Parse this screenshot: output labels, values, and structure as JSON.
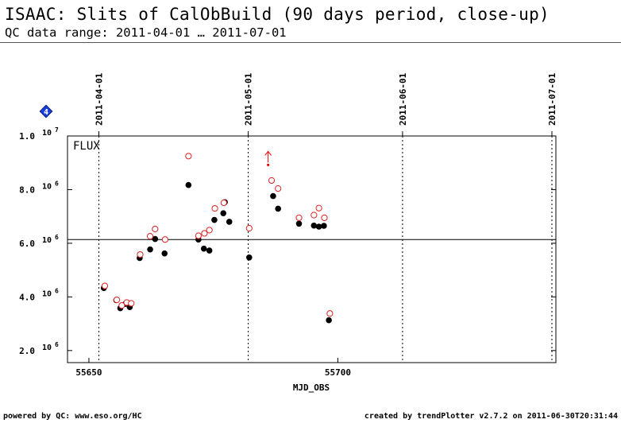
{
  "header": {
    "title": "ISAAC: Slits of CalObBuild (90 days period, close-up)",
    "subtitle": "QC data range: 2011-04-01 … 2011-07-01"
  },
  "footer": {
    "left": "powered by QC: www.eso.org/HC",
    "right": "created by trendPlotter v2.7.2 on 2011-06-30T20:31:44"
  },
  "badge": {
    "label": "4",
    "color": "#1a3fd8"
  },
  "chart_data": {
    "type": "scatter",
    "panel_label": "FLUX",
    "xlabel": "MJD_OBS",
    "ylabel": "",
    "xlim": [
      55645.7,
      55743.8
    ],
    "ylim": [
      1550000,
      10000000
    ],
    "x_ticks": [
      55650,
      55700
    ],
    "x_tick_labels": [
      "55650",
      "55700"
    ],
    "y_ticks": [
      {
        "value": 2000000,
        "mantissa": "2.0",
        "exp": "6"
      },
      {
        "value": 4000000,
        "mantissa": "4.0",
        "exp": "6"
      },
      {
        "value": 6000000,
        "mantissa": "6.0",
        "exp": "6"
      },
      {
        "value": 8000000,
        "mantissa": "8.0",
        "exp": "6"
      },
      {
        "value": 10000000,
        "mantissa": "1.0",
        "exp": "7"
      }
    ],
    "date_markers": [
      {
        "mjd": 55652,
        "label": "2011-04-01"
      },
      {
        "mjd": 55682,
        "label": "2011-05-01"
      },
      {
        "mjd": 55713,
        "label": "2011-06-01"
      },
      {
        "mjd": 55743,
        "label": "2011-07-01"
      }
    ],
    "reference_line": {
      "y": 6140000
    },
    "outlier_arrow": {
      "x": 55686,
      "y": 8920000
    },
    "colors": {
      "measured": "#000000",
      "reference": "#e02020",
      "marker": "#ff0000"
    },
    "series": [
      {
        "style": "filled-black",
        "points": [
          [
            55653.0,
            4330000
          ],
          [
            55655.5,
            3880000
          ],
          [
            55656.3,
            3580000
          ],
          [
            55657.3,
            3740000
          ],
          [
            55658.2,
            3620000
          ],
          [
            55660.2,
            5450000
          ],
          [
            55662.3,
            5770000
          ],
          [
            55663.3,
            6160000
          ],
          [
            55665.2,
            5620000
          ],
          [
            55670.0,
            8170000
          ],
          [
            55672.0,
            6140000
          ],
          [
            55673.1,
            5800000
          ],
          [
            55674.2,
            5730000
          ],
          [
            55675.2,
            6870000
          ],
          [
            55677.0,
            7120000
          ],
          [
            55677.3,
            7530000
          ],
          [
            55678.2,
            6800000
          ],
          [
            55682.2,
            5470000
          ],
          [
            55687.0,
            7760000
          ],
          [
            55688.0,
            7290000
          ],
          [
            55692.2,
            6730000
          ],
          [
            55695.2,
            6660000
          ],
          [
            55696.2,
            6620000
          ],
          [
            55697.2,
            6650000
          ],
          [
            55698.2,
            3130000
          ]
        ]
      },
      {
        "style": "open-red",
        "points": [
          [
            55653.2,
            4410000
          ],
          [
            55655.6,
            3890000
          ],
          [
            55656.6,
            3680000
          ],
          [
            55657.6,
            3790000
          ],
          [
            55658.5,
            3760000
          ],
          [
            55660.3,
            5580000
          ],
          [
            55662.3,
            6260000
          ],
          [
            55663.3,
            6530000
          ],
          [
            55665.3,
            6140000
          ],
          [
            55670.0,
            9250000
          ],
          [
            55672.0,
            6280000
          ],
          [
            55673.2,
            6370000
          ],
          [
            55674.2,
            6490000
          ],
          [
            55675.3,
            7300000
          ],
          [
            55677.1,
            7510000
          ],
          [
            55682.2,
            6560000
          ],
          [
            55686.7,
            8340000
          ],
          [
            55688.0,
            8040000
          ],
          [
            55692.2,
            6950000
          ],
          [
            55695.2,
            7050000
          ],
          [
            55696.2,
            7310000
          ],
          [
            55697.3,
            6950000
          ],
          [
            55698.4,
            3380000
          ]
        ]
      }
    ]
  }
}
